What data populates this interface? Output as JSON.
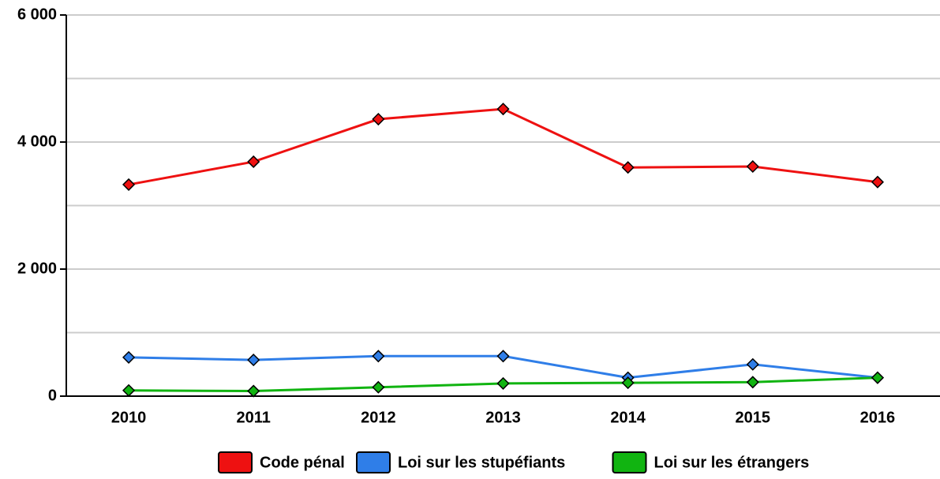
{
  "chart_data": {
    "type": "line",
    "categories": [
      "2010",
      "2011",
      "2012",
      "2013",
      "2014",
      "2015",
      "2016"
    ],
    "series": [
      {
        "name": "Code pénal",
        "color": "#ee1111",
        "values": [
          3330,
          3690,
          4360,
          4520,
          3600,
          3615,
          3370
        ]
      },
      {
        "name": "Loi sur les stupéfiants",
        "color": "#2f7ee8",
        "values": [
          610,
          570,
          630,
          630,
          290,
          500,
          290
        ]
      },
      {
        "name": "Loi sur les étrangers",
        "color": "#11b411",
        "values": [
          90,
          80,
          140,
          200,
          210,
          220,
          290
        ]
      }
    ],
    "ylim": [
      0,
      6000
    ],
    "yticks": [
      0,
      {
        "value": 2000,
        "label": "2 000"
      },
      {
        "value": 4000,
        "label": "4 000"
      },
      {
        "value": 6000,
        "label": "6 000"
      }
    ],
    "minor_yticks": [
      1000,
      3000,
      5000
    ],
    "grid": true,
    "legend": "bottom"
  }
}
